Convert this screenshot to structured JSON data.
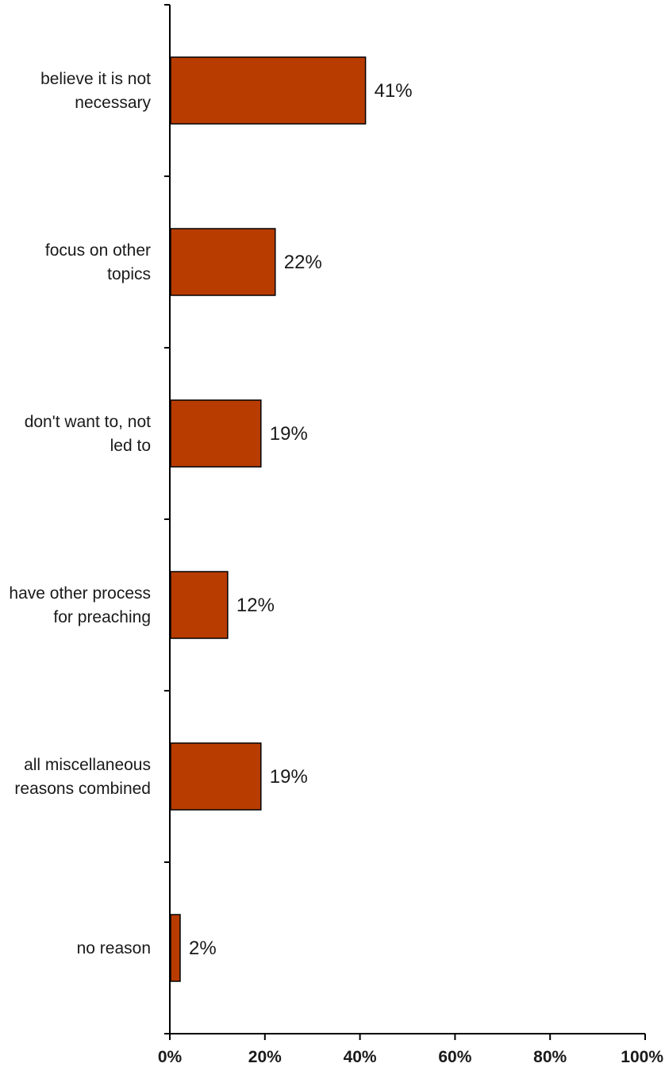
{
  "chart_data": {
    "type": "bar",
    "orientation": "horizontal",
    "categories": [
      [
        "believe it is not",
        "necessary"
      ],
      [
        "focus on other",
        "topics"
      ],
      [
        "don't want to, not",
        "led to"
      ],
      [
        "have other process",
        "for preaching"
      ],
      [
        "all miscellaneous",
        "reasons combined"
      ],
      [
        "no reason"
      ]
    ],
    "values": [
      41,
      22,
      19,
      12,
      19,
      2
    ],
    "value_labels": [
      "41%",
      "22%",
      "19%",
      "12%",
      "19%",
      "2%"
    ],
    "x_ticks": [
      "0%",
      "20%",
      "40%",
      "60%",
      "80%",
      "100%"
    ],
    "xlim": [
      0,
      100
    ],
    "title": "",
    "xlabel": "",
    "ylabel": "",
    "grid": false,
    "bar_color": "#b83c00"
  }
}
